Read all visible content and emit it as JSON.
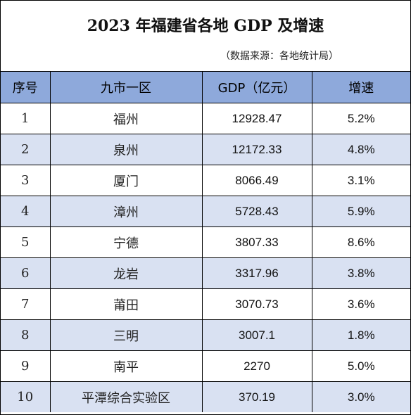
{
  "title": "2023 年福建省各地 GDP 及增速",
  "source": "（数据来源：各地统计局）",
  "colors": {
    "header_bg": "#8ea9db",
    "alt_row_bg": "#d9e1f2"
  },
  "headers": [
    "序号",
    "九市一区",
    "GDP（亿元）",
    "增速"
  ],
  "rows": [
    {
      "rank": "1",
      "region": "福州",
      "gdp": "12928.47",
      "growth": "5.2%"
    },
    {
      "rank": "2",
      "region": "泉州",
      "gdp": "12172.33",
      "growth": "4.8%"
    },
    {
      "rank": "3",
      "region": "厦门",
      "gdp": "8066.49",
      "growth": "3.1%"
    },
    {
      "rank": "4",
      "region": "漳州",
      "gdp": "5728.43",
      "growth": "5.9%"
    },
    {
      "rank": "5",
      "region": "宁德",
      "gdp": "3807.33",
      "growth": "8.6%"
    },
    {
      "rank": "6",
      "region": "龙岩",
      "gdp": "3317.96",
      "growth": "3.8%"
    },
    {
      "rank": "7",
      "region": "莆田",
      "gdp": "3070.73",
      "growth": "3.6%"
    },
    {
      "rank": "8",
      "region": "三明",
      "gdp": "3007.1",
      "growth": "1.8%"
    },
    {
      "rank": "9",
      "region": "南平",
      "gdp": "2270",
      "growth": "5.0%"
    },
    {
      "rank": "10",
      "region": "平潭综合实验区",
      "gdp": "370.19",
      "growth": "3.0%"
    }
  ]
}
